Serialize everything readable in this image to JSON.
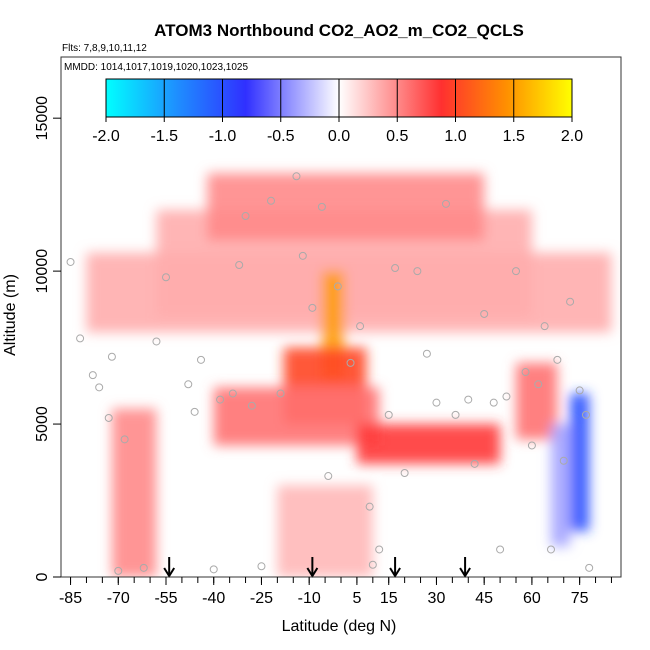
{
  "chart_data": {
    "type": "heatmap",
    "title": "ATOM3 Northbound CO2_AO2_m_CO2_QCLS",
    "subtitle_flights": "Flts: 7,8,9,10,11,12",
    "subtitle_dates": "MMDD: 1014,1017,1019,1020,1023,1025",
    "xlabel": "Latitude (deg N)",
    "ylabel": "Altitude (m)",
    "xlim": [
      -88,
      88
    ],
    "ylim": [
      0,
      17000
    ],
    "x_ticks_labeled": [
      "-85",
      "-70",
      "-55",
      "-40",
      "-25",
      "-10",
      "5",
      "15",
      "30",
      "45",
      "60",
      "75"
    ],
    "x_tick_values": [
      -85,
      -70,
      -55,
      -40,
      -25,
      -10,
      5,
      15,
      30,
      45,
      60,
      75
    ],
    "y_ticks_labeled": [
      "0",
      "5000",
      "10000",
      "15000"
    ],
    "y_tick_values": [
      0,
      5000,
      10000,
      15000
    ],
    "colorbar": {
      "min": -2.0,
      "max": 2.0,
      "tick_labels": [
        "-2.0",
        "-1.5",
        "-1.0",
        "-0.5",
        "0.0",
        "0.5",
        "1.0",
        "1.5",
        "2.0"
      ],
      "tick_values": [
        -2.0,
        -1.5,
        -1.0,
        -0.5,
        0.0,
        0.5,
        1.0,
        1.5,
        2.0
      ],
      "colors": [
        "#00ffff",
        "#1e90ff",
        "#3030ff",
        "#ffffff",
        "#ff3030",
        "#ff9000",
        "#ffff00"
      ]
    },
    "arrows_latitude": [
      -54,
      -9,
      17,
      39
    ],
    "regions": [
      {
        "lat": [
          -58,
          60
        ],
        "alt": [
          8500,
          12000
        ],
        "value": 0.35
      },
      {
        "lat": [
          -42,
          45
        ],
        "alt": [
          11000,
          13200
        ],
        "value": 0.5
      },
      {
        "lat": [
          -80,
          85
        ],
        "alt": [
          8000,
          10600
        ],
        "value": 0.35
      },
      {
        "lat": [
          -6,
          1
        ],
        "alt": [
          6500,
          10000
        ],
        "value": 1.5
      },
      {
        "lat": [
          -18,
          8
        ],
        "alt": [
          5000,
          7500
        ],
        "value": 1.0
      },
      {
        "lat": [
          -40,
          12
        ],
        "alt": [
          4300,
          6200
        ],
        "value": 0.6
      },
      {
        "lat": [
          5,
          50
        ],
        "alt": [
          3700,
          5000
        ],
        "value": 0.85
      },
      {
        "lat": [
          -72,
          -58
        ],
        "alt": [
          0,
          5500
        ],
        "value": 0.5
      },
      {
        "lat": [
          -20,
          10
        ],
        "alt": [
          0,
          3000
        ],
        "value": 0.3
      },
      {
        "lat": [
          55,
          68
        ],
        "alt": [
          4500,
          7000
        ],
        "value": 0.6
      },
      {
        "lat": [
          72,
          78
        ],
        "alt": [
          1500,
          6000
        ],
        "value": -1.0
      },
      {
        "lat": [
          66,
          72
        ],
        "alt": [
          1000,
          5000
        ],
        "value": -0.35
      }
    ],
    "sample_points": [
      {
        "lat": -85,
        "alt": 10300
      },
      {
        "lat": -82,
        "alt": 7800
      },
      {
        "lat": -78,
        "alt": 6600
      },
      {
        "lat": -76,
        "alt": 6200
      },
      {
        "lat": -73,
        "alt": 5200
      },
      {
        "lat": -72,
        "alt": 7200
      },
      {
        "lat": -70,
        "alt": 200
      },
      {
        "lat": -68,
        "alt": 4500
      },
      {
        "lat": -62,
        "alt": 300
      },
      {
        "lat": -58,
        "alt": 7700
      },
      {
        "lat": -55,
        "alt": 9800
      },
      {
        "lat": -48,
        "alt": 6300
      },
      {
        "lat": -46,
        "alt": 5400
      },
      {
        "lat": -44,
        "alt": 7100
      },
      {
        "lat": -40,
        "alt": 250
      },
      {
        "lat": -38,
        "alt": 5800
      },
      {
        "lat": -34,
        "alt": 6000
      },
      {
        "lat": -32,
        "alt": 10200
      },
      {
        "lat": -30,
        "alt": 11800
      },
      {
        "lat": -28,
        "alt": 5600
      },
      {
        "lat": -25,
        "alt": 350
      },
      {
        "lat": -22,
        "alt": 12300
      },
      {
        "lat": -19,
        "alt": 6000
      },
      {
        "lat": -14,
        "alt": 13100
      },
      {
        "lat": -12,
        "alt": 10500
      },
      {
        "lat": -9,
        "alt": 8800
      },
      {
        "lat": -6,
        "alt": 12100
      },
      {
        "lat": -4,
        "alt": 3300
      },
      {
        "lat": -1,
        "alt": 9500
      },
      {
        "lat": 3,
        "alt": 7000
      },
      {
        "lat": 6,
        "alt": 8200
      },
      {
        "lat": 9,
        "alt": 2300
      },
      {
        "lat": 10,
        "alt": 400
      },
      {
        "lat": 12,
        "alt": 900
      },
      {
        "lat": 15,
        "alt": 5300
      },
      {
        "lat": 17,
        "alt": 10100
      },
      {
        "lat": 20,
        "alt": 3400
      },
      {
        "lat": 24,
        "alt": 10000
      },
      {
        "lat": 27,
        "alt": 7300
      },
      {
        "lat": 30,
        "alt": 5700
      },
      {
        "lat": 33,
        "alt": 12200
      },
      {
        "lat": 36,
        "alt": 5300
      },
      {
        "lat": 40,
        "alt": 5800
      },
      {
        "lat": 42,
        "alt": 3700
      },
      {
        "lat": 45,
        "alt": 8600
      },
      {
        "lat": 48,
        "alt": 5700
      },
      {
        "lat": 50,
        "alt": 900
      },
      {
        "lat": 52,
        "alt": 5900
      },
      {
        "lat": 55,
        "alt": 10000
      },
      {
        "lat": 58,
        "alt": 6700
      },
      {
        "lat": 60,
        "alt": 4300
      },
      {
        "lat": 62,
        "alt": 6300
      },
      {
        "lat": 64,
        "alt": 8200
      },
      {
        "lat": 66,
        "alt": 900
      },
      {
        "lat": 68,
        "alt": 7100
      },
      {
        "lat": 70,
        "alt": 3800
      },
      {
        "lat": 72,
        "alt": 9000
      },
      {
        "lat": 75,
        "alt": 6100
      },
      {
        "lat": 77,
        "alt": 5300
      },
      {
        "lat": 78,
        "alt": 300
      }
    ]
  }
}
